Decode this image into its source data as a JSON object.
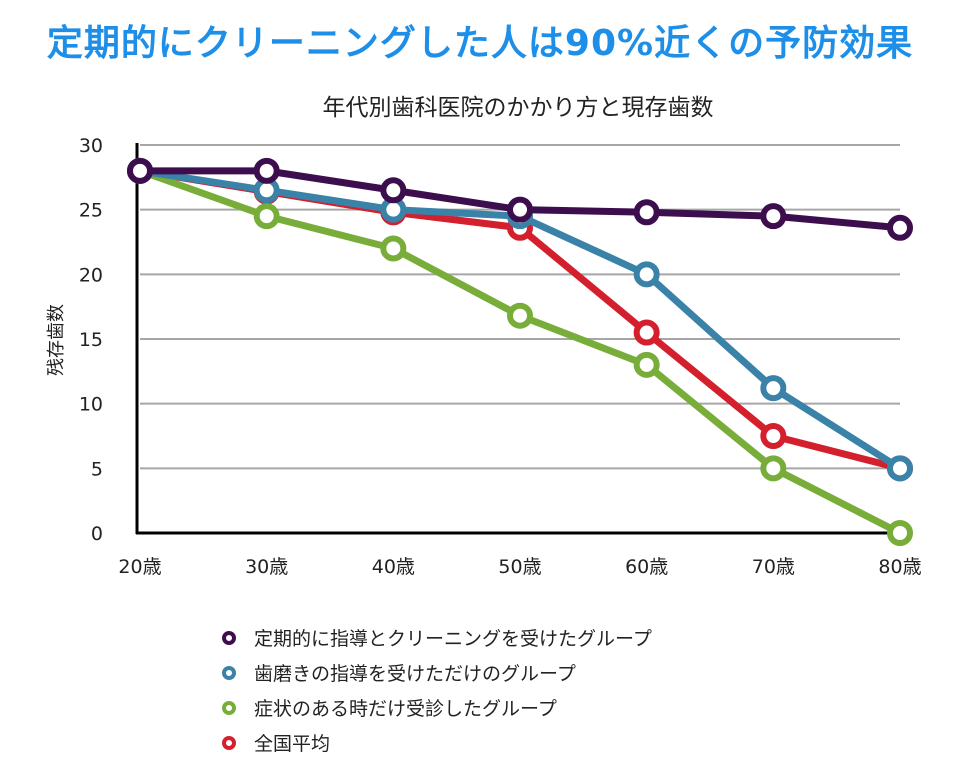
{
  "headline": "定期的にクリーニングした人は90%近くの予防効果",
  "chart_data": {
    "type": "line",
    "title": "年代別歯科医院のかかり方と現存歯数",
    "xlabel": "",
    "ylabel": "残存歯数",
    "categories": [
      "20歳",
      "30歳",
      "40歳",
      "50歳",
      "60歳",
      "70歳",
      "80歳"
    ],
    "ylim": [
      0,
      30
    ],
    "yticks": [
      0,
      5,
      10,
      15,
      20,
      25,
      30
    ],
    "grid": true,
    "legend_position": "bottom",
    "series": [
      {
        "name": "定期的に指導とクリーニングを受けたグループ",
        "color": "#3d0e4e",
        "values": [
          28,
          28,
          26.5,
          25,
          24.8,
          24.5,
          23.6
        ]
      },
      {
        "name": "歯磨きの指導を受けただけのグループ",
        "color": "#3a82a8",
        "values": [
          28,
          26.5,
          25,
          24.5,
          20,
          11.2,
          5
        ]
      },
      {
        "name": "症状のある時だけ受診したグループ",
        "color": "#78ad3a",
        "values": [
          28,
          24.5,
          22,
          16.8,
          13,
          5,
          0
        ]
      },
      {
        "name": "全国平均",
        "color": "#d41f2d",
        "values": [
          28,
          26.4,
          24.8,
          23.6,
          15.5,
          7.5,
          5
        ]
      }
    ],
    "draw_order": [
      3,
      2,
      1,
      0
    ]
  }
}
